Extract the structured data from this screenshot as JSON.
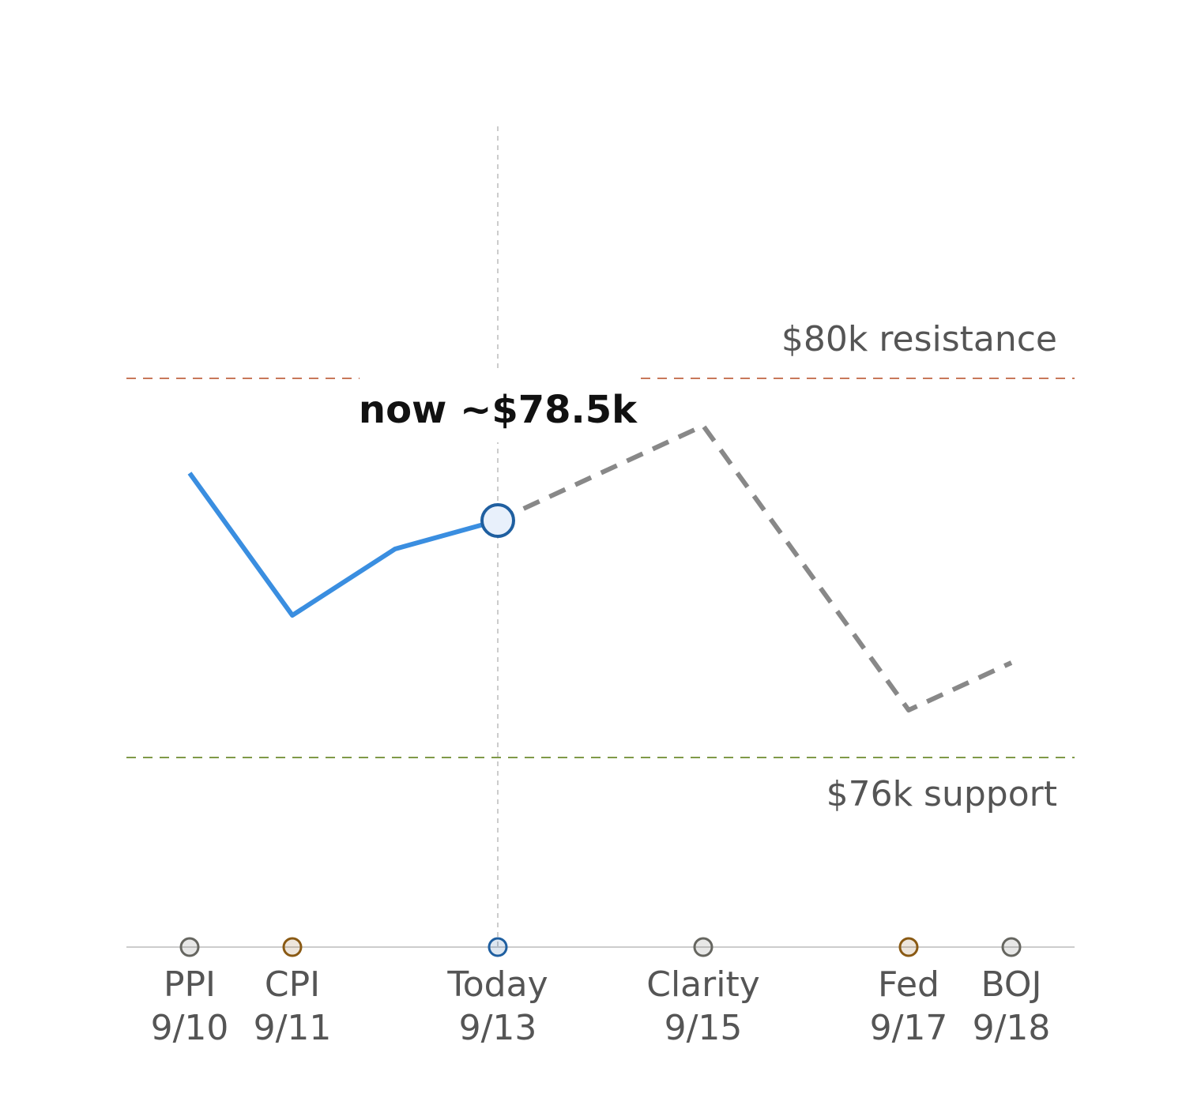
{
  "chart_data": {
    "type": "line",
    "annotation": "now ~$78.5k",
    "now": {
      "x": "9/13",
      "value": 78.5
    },
    "series": [
      {
        "color": "#3a8ee0",
        "dashed": false,
        "x": [
          "9/10",
          "9/11",
          "9/12",
          "9/13"
        ],
        "values": [
          79.0,
          77.5,
          78.2,
          78.5
        ]
      },
      {
        "color": "#888888",
        "dashed": true,
        "x": [
          "9/13",
          "9/15",
          "9/17",
          "9/18"
        ],
        "values": [
          78.5,
          79.5,
          76.5,
          77.0
        ]
      }
    ],
    "levels": [
      {
        "value": 80,
        "label": "$80k resistance",
        "color": "#c8785a"
      },
      {
        "value": 76,
        "label": "$76k support",
        "color": "#7f9a48"
      }
    ],
    "events": [
      {
        "name": "PPI",
        "date": "9/10",
        "color": "#666660"
      },
      {
        "name": "CPI",
        "date": "9/11",
        "color": "#8a5a14"
      },
      {
        "name": "Today",
        "date": "9/13",
        "color": "#1f5fa0"
      },
      {
        "name": "Clarity",
        "date": "9/15",
        "color": "#666660"
      },
      {
        "name": "Fed",
        "date": "9/17",
        "color": "#8a5a14"
      },
      {
        "name": "BOJ",
        "date": "9/18",
        "color": "#666660"
      }
    ],
    "xlim": [
      "9/9",
      "9/19"
    ],
    "ylim": [
      74,
      82
    ]
  }
}
